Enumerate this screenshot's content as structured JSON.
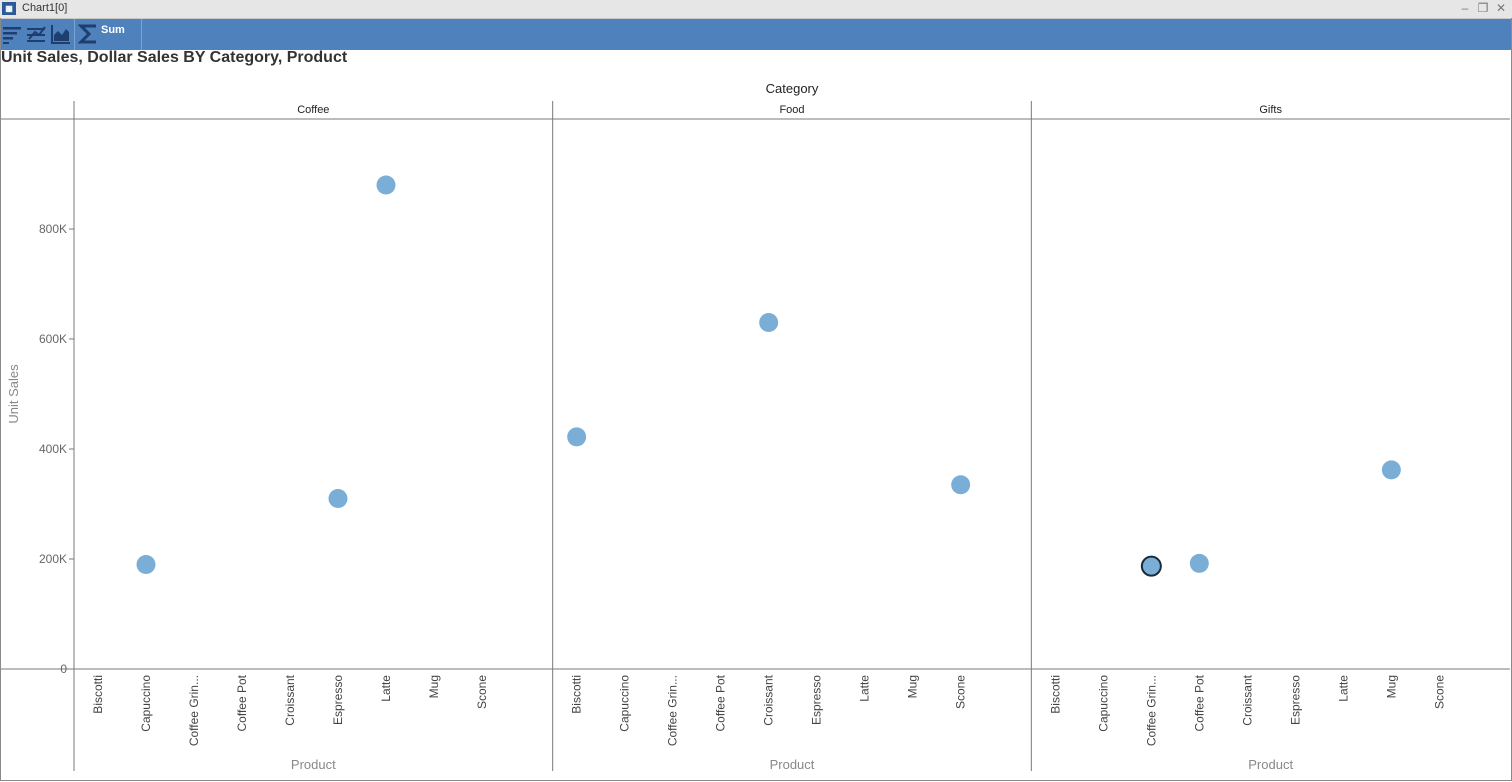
{
  "window": {
    "title": "Chart1[0]",
    "app_icon": "app-chart-icon"
  },
  "window_controls": [
    "minimize-icon",
    "restore-icon",
    "close-icon"
  ],
  "toolbar": {
    "buttons": [
      "sort-icon",
      "filter-icon",
      "chart-type-icon",
      "sum-icon"
    ],
    "sum_label": "Sum",
    "background": "#4f81bd"
  },
  "chart_data": {
    "type": "scatter",
    "title": "Unit Sales, Dollar Sales BY Category, Product",
    "facet_label": "Category",
    "xlabel": "Product",
    "ylabel": "Unit Sales",
    "ylim": [
      0,
      1000000
    ],
    "yticks": [
      0,
      200000,
      400000,
      600000,
      800000
    ],
    "ytick_labels": [
      "0",
      "200K",
      "400K",
      "600K",
      "800K"
    ],
    "grid": false,
    "categories": [
      "Biscotti",
      "Capuccino",
      "Coffee Grin...",
      "Coffee Pot",
      "Croissant",
      "Espresso",
      "Latte",
      "Mug",
      "Scone"
    ],
    "marker_color": "#7aaed6",
    "panels": [
      {
        "name": "Coffee",
        "points": [
          {
            "x": "Capuccino",
            "y": 190000
          },
          {
            "x": "Espresso",
            "y": 310000
          },
          {
            "x": "Latte",
            "y": 880000
          }
        ]
      },
      {
        "name": "Food",
        "points": [
          {
            "x": "Biscotti",
            "y": 422000
          },
          {
            "x": "Croissant",
            "y": 630000
          },
          {
            "x": "Scone",
            "y": 335000
          }
        ]
      },
      {
        "name": "Gifts",
        "points": [
          {
            "x": "Coffee Grin...",
            "y": 187000,
            "selected": true
          },
          {
            "x": "Coffee Pot",
            "y": 192000
          },
          {
            "x": "Mug",
            "y": 362000
          }
        ]
      }
    ]
  }
}
